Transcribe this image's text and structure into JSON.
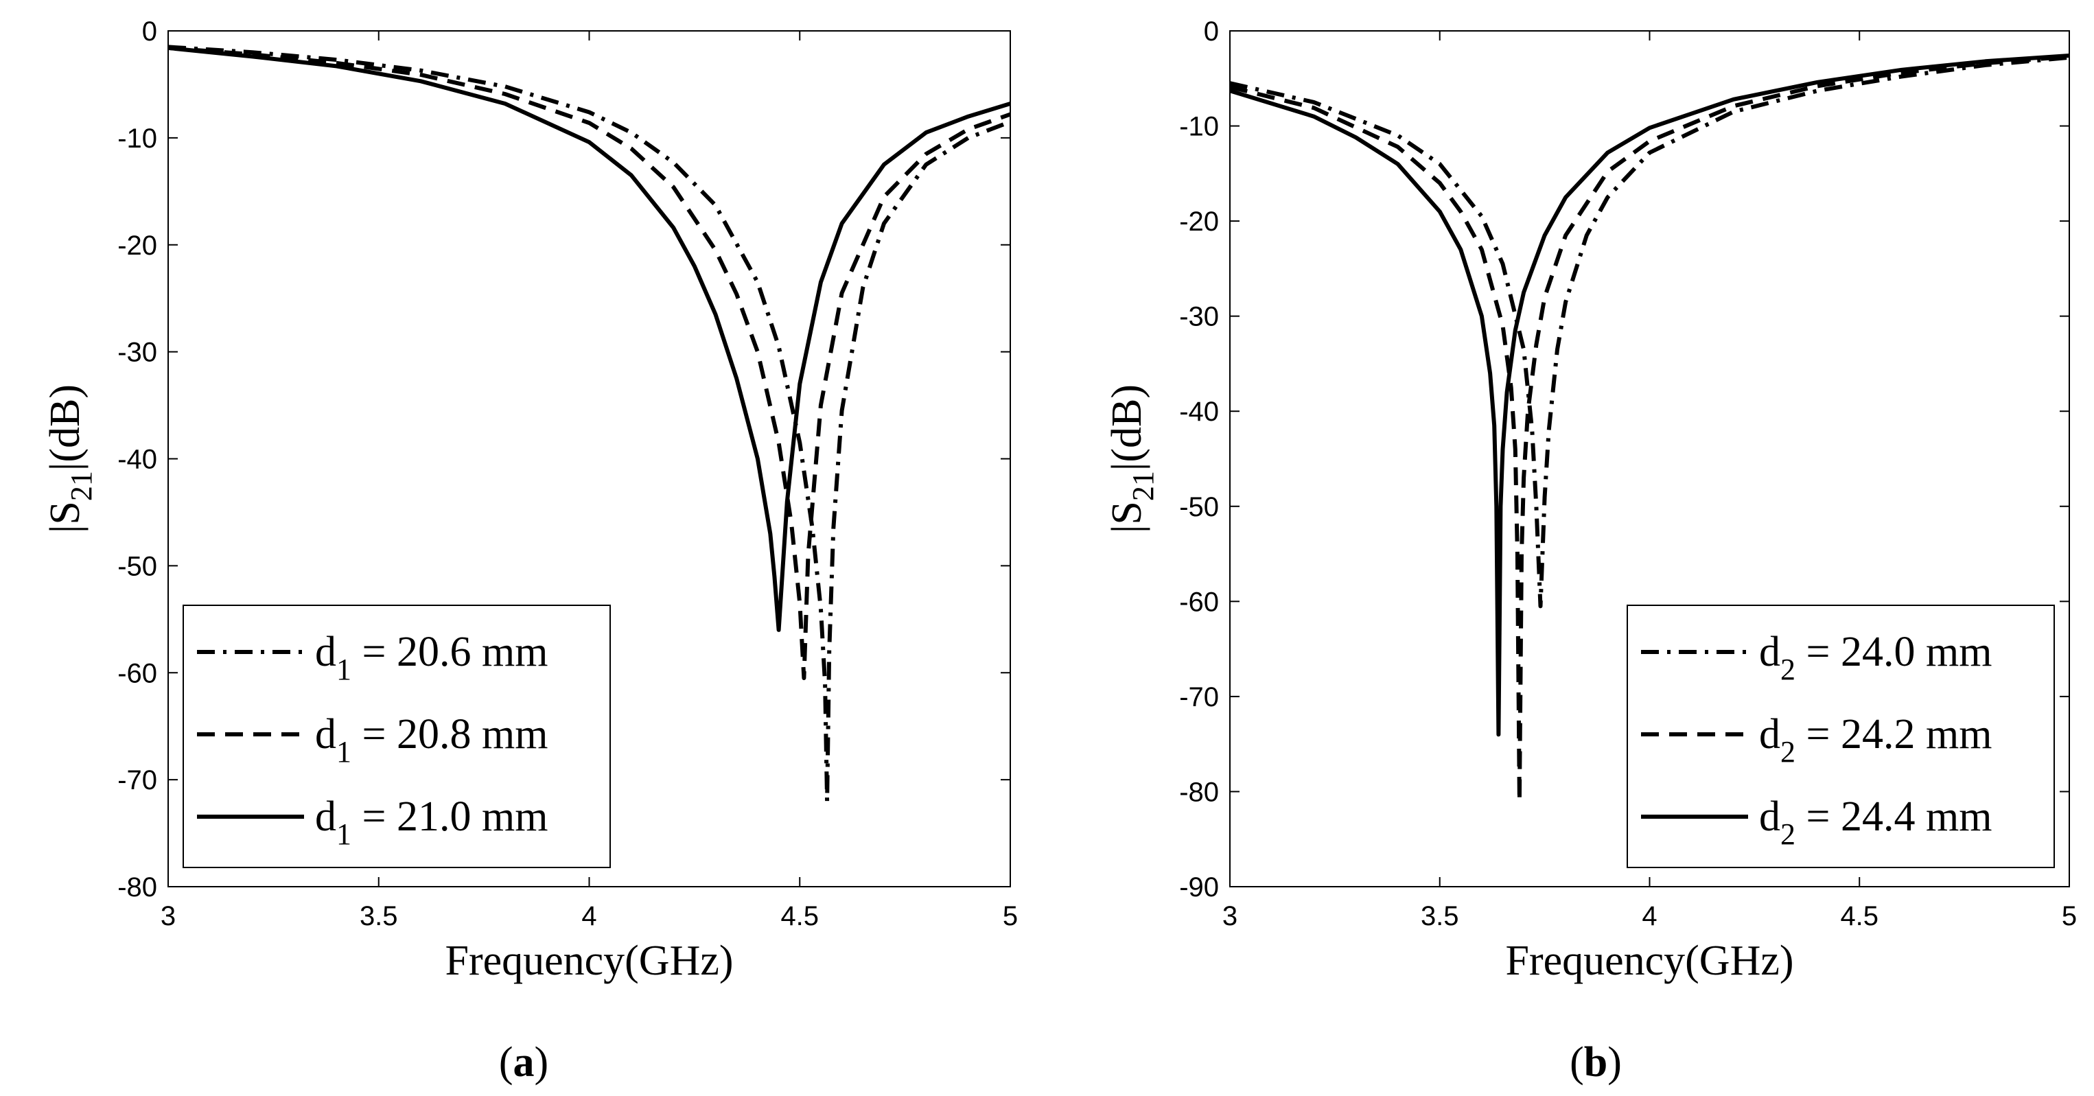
{
  "chart_data": [
    {
      "type": "line",
      "panel_label": "a",
      "xlabel": "Frequency(GHz)",
      "ylabel_main": "|S",
      "ylabel_sub": "21",
      "ylabel_tail": "|(dB)",
      "xlim": [
        3,
        5
      ],
      "ylim": [
        -80,
        0
      ],
      "xticks": [
        3,
        3.5,
        4,
        4.5,
        5
      ],
      "xtick_labels": [
        "3",
        "3.5",
        "4",
        "4.5",
        "5"
      ],
      "yticks": [
        0,
        -10,
        -20,
        -30,
        -40,
        -50,
        -60,
        -70,
        -80
      ],
      "ytick_labels": [
        "0",
        "-10",
        "-20",
        "-30",
        "-40",
        "-50",
        "-60",
        "-70",
        "-80"
      ],
      "legend_position": "bottom-left",
      "series": [
        {
          "name": "d1 = 20.6 mm",
          "label_main": "d",
          "label_sub": "1",
          "label_tail": " = 20.6 mm",
          "style": "dashdot",
          "f0": 4.565,
          "min_db": -72,
          "x": [
            3.0,
            3.2,
            3.4,
            3.6,
            3.8,
            4.0,
            4.1,
            4.2,
            4.3,
            4.4,
            4.45,
            4.5,
            4.53,
            4.55,
            4.56,
            4.565,
            4.57,
            4.58,
            4.6,
            4.65,
            4.7,
            4.8,
            4.9,
            5.0
          ],
          "y": [
            -1.5,
            -2.0,
            -2.7,
            -3.7,
            -5.2,
            -7.6,
            -9.5,
            -12.3,
            -16.3,
            -23.5,
            -29.5,
            -38.5,
            -46.5,
            -54.0,
            -61.0,
            -72.0,
            -58.0,
            -46.5,
            -35.5,
            -24.0,
            -18.0,
            -12.5,
            -10.0,
            -8.5
          ]
        },
        {
          "name": "d1 = 20.8 mm",
          "label_main": "d",
          "label_sub": "1",
          "label_tail": " = 20.8 mm",
          "style": "dashed",
          "f0": 4.51,
          "min_db": -60.5,
          "x": [
            3.0,
            3.2,
            3.4,
            3.6,
            3.8,
            4.0,
            4.1,
            4.2,
            4.3,
            4.35,
            4.4,
            4.45,
            4.48,
            4.5,
            4.51,
            4.52,
            4.55,
            4.6,
            4.7,
            4.8,
            4.9,
            5.0
          ],
          "y": [
            -1.6,
            -2.2,
            -3.0,
            -4.1,
            -5.9,
            -8.6,
            -11.0,
            -14.6,
            -20.5,
            -24.6,
            -30.0,
            -38.5,
            -46.0,
            -53.5,
            -60.5,
            -49.0,
            -35.0,
            -24.5,
            -15.5,
            -11.5,
            -9.2,
            -7.8
          ]
        },
        {
          "name": "d1 = 21.0 mm",
          "label_main": "d",
          "label_sub": "1",
          "label_tail": " = 21.0 mm",
          "style": "solid",
          "f0": 4.45,
          "min_db": -56,
          "x": [
            3.0,
            3.2,
            3.4,
            3.6,
            3.8,
            4.0,
            4.1,
            4.2,
            4.25,
            4.3,
            4.35,
            4.4,
            4.43,
            4.44,
            4.45,
            4.46,
            4.47,
            4.5,
            4.55,
            4.6,
            4.7,
            4.8,
            4.9,
            5.0
          ],
          "y": [
            -1.6,
            -2.4,
            -3.3,
            -4.7,
            -6.8,
            -10.4,
            -13.5,
            -18.4,
            -22.0,
            -26.5,
            -32.5,
            -40.0,
            -47.0,
            -51.0,
            -56.0,
            -50.0,
            -44.0,
            -33.0,
            -23.5,
            -18.0,
            -12.5,
            -9.5,
            -8.0,
            -6.8
          ]
        }
      ]
    },
    {
      "type": "line",
      "panel_label": "b",
      "xlabel": "Frequency(GHz)",
      "ylabel_main": "|S",
      "ylabel_sub": "21",
      "ylabel_tail": "|(dB)",
      "xlim": [
        3,
        5
      ],
      "ylim": [
        -90,
        0
      ],
      "xticks": [
        3,
        3.5,
        4,
        4.5,
        5
      ],
      "xtick_labels": [
        "3",
        "3.5",
        "4",
        "4.5",
        "5"
      ],
      "yticks": [
        0,
        -10,
        -20,
        -30,
        -40,
        -50,
        -60,
        -70,
        -80,
        -90
      ],
      "ytick_labels": [
        "0",
        "-10",
        "-20",
        "-30",
        "-40",
        "-50",
        "-60",
        "-70",
        "-80",
        "-90"
      ],
      "legend_position": "bottom-right",
      "series": [
        {
          "name": "d2 = 24.0 mm",
          "label_main": "d",
          "label_sub": "2",
          "label_tail": " = 24.0 mm",
          "style": "dashdot",
          "f0": 3.74,
          "min_db": -60.5,
          "x": [
            3.0,
            3.2,
            3.4,
            3.5,
            3.6,
            3.65,
            3.7,
            3.72,
            3.73,
            3.74,
            3.75,
            3.76,
            3.78,
            3.8,
            3.85,
            3.9,
            4.0,
            4.2,
            4.4,
            4.6,
            4.8,
            5.0
          ],
          "y": [
            -5.5,
            -7.5,
            -11.0,
            -14.0,
            -19.5,
            -24.5,
            -33.5,
            -42.0,
            -50.0,
            -60.5,
            -49.0,
            -42.0,
            -33.5,
            -28.5,
            -21.5,
            -17.5,
            -12.8,
            -8.5,
            -6.3,
            -4.8,
            -3.6,
            -2.8
          ]
        },
        {
          "name": "d2 = 24.2 mm",
          "label_main": "d",
          "label_sub": "2",
          "label_tail": " = 24.2 mm",
          "style": "dashed",
          "f0": 3.69,
          "min_db": -81,
          "x": [
            3.0,
            3.2,
            3.4,
            3.5,
            3.55,
            3.6,
            3.65,
            3.67,
            3.68,
            3.685,
            3.69,
            3.695,
            3.7,
            3.71,
            3.73,
            3.75,
            3.8,
            3.9,
            4.0,
            4.2,
            4.4,
            4.6,
            4.8,
            5.0
          ],
          "y": [
            -5.9,
            -8.1,
            -12.2,
            -16.0,
            -19.0,
            -23.0,
            -31.0,
            -37.5,
            -44.0,
            -55.0,
            -81.0,
            -55.0,
            -47.0,
            -40.0,
            -33.0,
            -28.0,
            -21.5,
            -14.8,
            -11.6,
            -7.9,
            -5.8,
            -4.4,
            -3.4,
            -2.7
          ]
        },
        {
          "name": "d2 = 24.4 mm",
          "label_main": "d",
          "label_sub": "2",
          "label_tail": " = 24.4 mm",
          "style": "solid",
          "f0": 3.64,
          "min_db": -74,
          "x": [
            3.0,
            3.2,
            3.3,
            3.4,
            3.5,
            3.55,
            3.6,
            3.62,
            3.63,
            3.635,
            3.64,
            3.645,
            3.65,
            3.66,
            3.68,
            3.7,
            3.75,
            3.8,
            3.9,
            4.0,
            4.2,
            4.4,
            4.6,
            4.8,
            5.0
          ],
          "y": [
            -6.3,
            -9.0,
            -11.2,
            -14.0,
            -19.0,
            -23.0,
            -30.0,
            -36.0,
            -41.5,
            -50.0,
            -74.0,
            -50.0,
            -44.0,
            -38.0,
            -31.5,
            -27.5,
            -21.5,
            -17.5,
            -12.8,
            -10.2,
            -7.2,
            -5.4,
            -4.1,
            -3.2,
            -2.6
          ]
        }
      ]
    }
  ]
}
